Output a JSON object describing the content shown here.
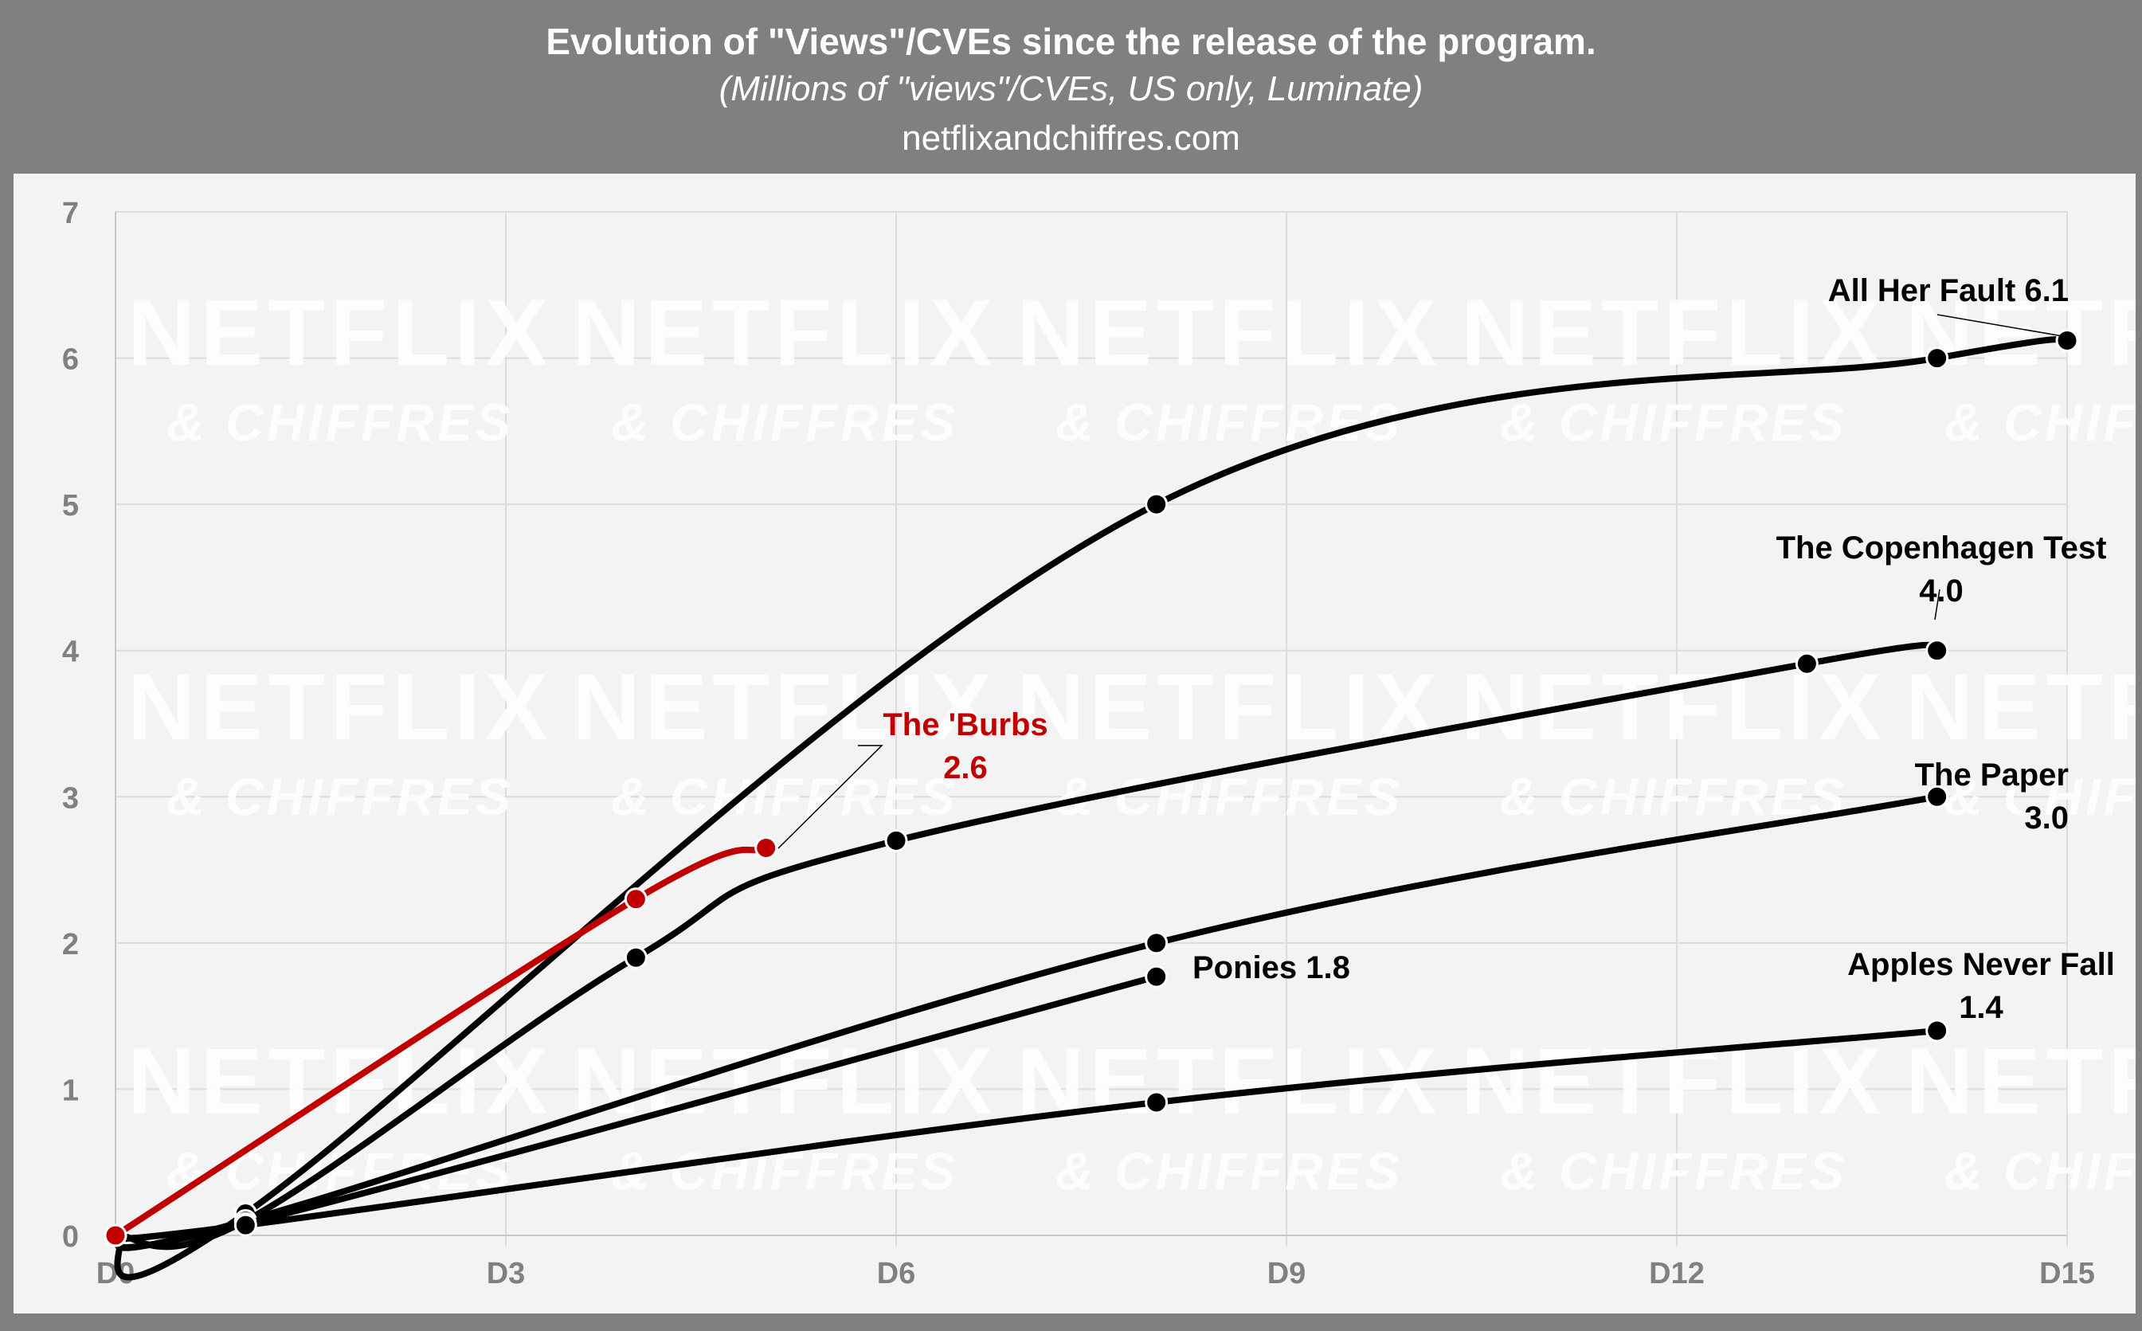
{
  "header": {
    "title": "Evolution of \"Views\"/CVEs since the release of the program.",
    "subtitle": "(Millions of \"views\"/CVEs, US only, Luminate)",
    "source": "netflixandchiffres.com"
  },
  "watermark": {
    "line1": "NETFLIX",
    "line2": "& CHIFFRES"
  },
  "colors": {
    "background": "#808080",
    "plot_background": "#f3f3f3",
    "grid": "#dcdcdc",
    "series_default": "#000000",
    "highlight": "#c00000",
    "tick_text": "#808080"
  },
  "chart_data": {
    "type": "line",
    "title": "Evolution of \"Views\"/CVEs since the release of the program.",
    "subtitle": "(Millions of \"views\"/CVEs, US only, Luminate)",
    "xlabel": "",
    "ylabel": "",
    "xlim": [
      0,
      15
    ],
    "ylim": [
      0,
      7
    ],
    "grid": true,
    "x_ticks": [
      {
        "value": 0,
        "label": "D0"
      },
      {
        "value": 3,
        "label": "D3"
      },
      {
        "value": 6,
        "label": "D6"
      },
      {
        "value": 9,
        "label": "D9"
      },
      {
        "value": 12,
        "label": "D12"
      },
      {
        "value": 15,
        "label": "D15"
      }
    ],
    "y_ticks": [
      0,
      1,
      2,
      3,
      4,
      5,
      6,
      7
    ],
    "series": [
      {
        "name": "All Her Fault",
        "value_label": "6.1",
        "label_lines": [
          "All Her Fault 6.1"
        ],
        "color": "#000000",
        "x": [
          0,
          1,
          8,
          14,
          15
        ],
        "y": [
          0,
          0.15,
          5.0,
          6.0,
          6.12
        ],
        "label_anchor": "end",
        "leader": true
      },
      {
        "name": "The Copenhagen Test",
        "value_label": "4.0",
        "label_lines": [
          "The Copenhagen Test",
          "4.0"
        ],
        "color": "#000000",
        "x": [
          0,
          1,
          4,
          6,
          13,
          14
        ],
        "y": [
          0,
          0.1,
          1.9,
          2.7,
          3.91,
          4.0
        ],
        "label_anchor": "middle",
        "leader": true
      },
      {
        "name": "The Paper",
        "value_label": "3.0",
        "label_lines": [
          "The Paper",
          "3.0"
        ],
        "color": "#000000",
        "x": [
          0,
          1,
          8,
          14
        ],
        "y": [
          0,
          0.1,
          2.0,
          3.0
        ],
        "label_anchor": "end",
        "leader": false
      },
      {
        "name": "Ponies",
        "value_label": "1.8",
        "label_lines": [
          "Ponies 1.8"
        ],
        "color": "#000000",
        "x": [
          0,
          1,
          8
        ],
        "y": [
          0,
          0.08,
          1.77
        ],
        "label_anchor": "start",
        "leader": false
      },
      {
        "name": "Apples Never Fall",
        "value_label": "1.4",
        "label_lines": [
          "Apples Never Fall",
          "1.4"
        ],
        "color": "#000000",
        "x": [
          0,
          1,
          8,
          14
        ],
        "y": [
          0,
          0.07,
          0.91,
          1.4
        ],
        "label_anchor": "middle",
        "leader": false
      },
      {
        "name": "The 'Burbs",
        "value_label": "2.6",
        "label_lines": [
          "The 'Burbs",
          "2.6"
        ],
        "color": "#c00000",
        "x": [
          0,
          4,
          5
        ],
        "y": [
          0,
          2.3,
          2.65
        ],
        "label_anchor": "middle",
        "leader": true
      }
    ]
  }
}
